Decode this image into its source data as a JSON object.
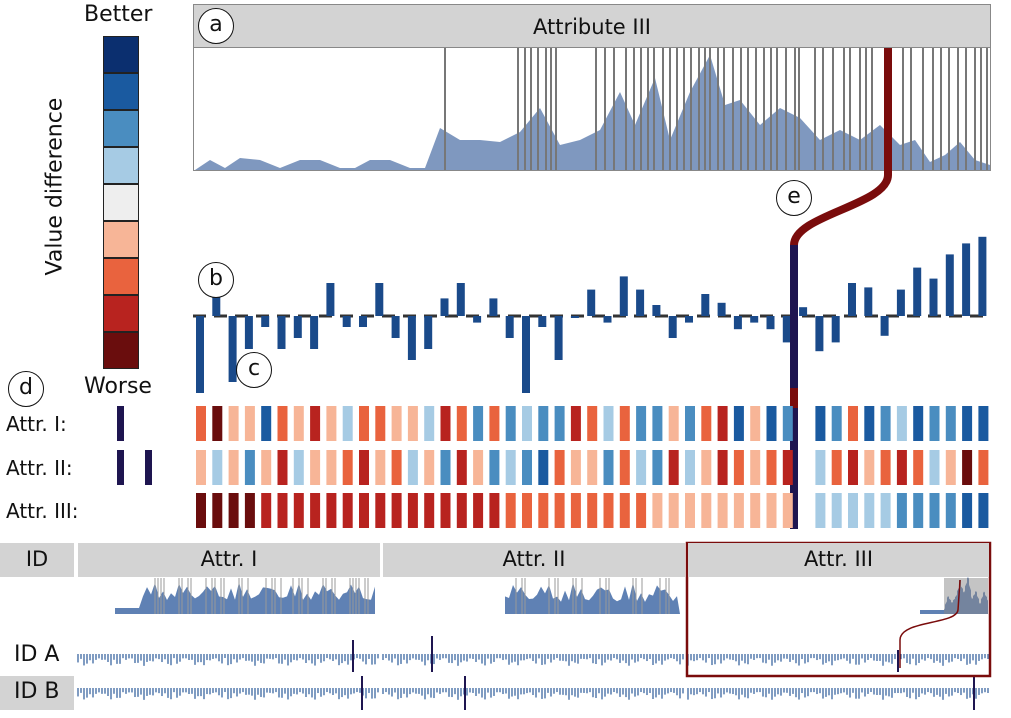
{
  "legend": {
    "top_label": "Better",
    "bottom_label": "Worse",
    "axis_label": "Value difference",
    "colors": [
      "#0b2f6f",
      "#1a5aa0",
      "#4a8dc0",
      "#a6cbe4",
      "#eeeeee",
      "#f7b597",
      "#e9633e",
      "#b8231f",
      "#6a0d0d"
    ]
  },
  "markers": {
    "a": "a",
    "b": "b",
    "c": "c",
    "d": "d",
    "e": "e"
  },
  "top_panel": {
    "title": "Attribute III"
  },
  "attr_rows": {
    "attr1": "Attr. I:",
    "attr2": "Attr. II:",
    "attr3": "Attr. III:"
  },
  "bottom_table": {
    "id_header": "ID",
    "col1": "Attr. I",
    "col2": "Attr. II",
    "col3": "Attr. III",
    "row_a": "ID A",
    "row_b": "ID B"
  },
  "colors": {
    "highlight": "#7a0c0c",
    "bar_blue": "#1a4a8a",
    "area_fill": "#7f98bf",
    "selected": "#1e1550"
  },
  "bars_b": [
    -3.5,
    1,
    -3,
    -1.5,
    -0.5,
    -1.5,
    -1,
    -1.5,
    1.5,
    -0.5,
    -0.5,
    1.5,
    -1,
    -2,
    -1.5,
    0.8,
    1.5,
    -0.3,
    0.8,
    -1,
    -3.5,
    -0.5,
    -2,
    0,
    1.2,
    -0.3,
    1.8,
    1.2,
    0.5,
    -1,
    -0.3,
    1,
    0.6,
    -0.6,
    -0.3,
    -0.6,
    -1.2,
    0.4,
    -1.6,
    -1.2,
    1.5,
    1.3,
    -0.9,
    1.2,
    2.2,
    1.7,
    2.8,
    3.3,
    3.6
  ],
  "strip_attr1": [
    "#e9633e",
    "#6a0d0d",
    "#f7b597",
    "#f7b597",
    "#1a5aa0",
    "#e9633e",
    "#f7b597",
    "#b8231f",
    "#f7b597",
    "#a6cbe4",
    "#e9633e",
    "#e9633e",
    "#f7b597",
    "#f7b597",
    "#a6cbe4",
    "#b8231f",
    "#e9633e",
    "#4a8dc0",
    "#e9633e",
    "#4a8dc0",
    "#a6cbe4",
    "#4a8dc0",
    "#4a8dc0",
    "#b8231f",
    "#e9633e",
    "#a6cbe4",
    "#e9633e",
    "#4a8dc0",
    "#4a8dc0",
    "#f7b597",
    "#4a8dc0",
    "#e9633e",
    "#b8231f",
    "#1a5aa0",
    "#f7b597",
    "#1a5aa0",
    "#4a8dc0",
    "#4a8dc0",
    "#1a5aa0",
    "#4a8dc0",
    "#e9633e",
    "#1a5aa0",
    "#4a8dc0",
    "#a6cbe4",
    "#1a5aa0",
    "#4a8dc0",
    "#4a8dc0",
    "#1a5aa0",
    "#1a5aa0"
  ],
  "strip_attr2": [
    "#f7b597",
    "#a6cbe4",
    "#f7b597",
    "#4a8dc0",
    "#f7b597",
    "#b8231f",
    "#a6cbe4",
    "#f7b597",
    "#f7b597",
    "#e9633e",
    "#b8231f",
    "#f7b597",
    "#e9633e",
    "#a6cbe4",
    "#f7b597",
    "#4a8dc0",
    "#b8231f",
    "#f7b597",
    "#4a8dc0",
    "#a6cbe4",
    "#4a8dc0",
    "#1a5aa0",
    "#e9633e",
    "#f7b597",
    "#f7b597",
    "#4a8dc0",
    "#e9633e",
    "#a6cbe4",
    "#4a8dc0",
    "#b8231f",
    "#a6cbe4",
    "#f7b597",
    "#b8231f",
    "#e9633e",
    "#f7b597",
    "#e9633e",
    "#b8231f",
    "#f7b597",
    "#a6cbe4",
    "#e9633e",
    "#b8231f",
    "#f7b597",
    "#e9633e",
    "#b8231f",
    "#e9633e",
    "#a6cbe4",
    "#f7b597",
    "#6a0d0d",
    "#e9633e"
  ],
  "strip_attr3": [
    "#6a0d0d",
    "#6a0d0d",
    "#6a0d0d",
    "#6a0d0d",
    "#b8231f",
    "#b8231f",
    "#b8231f",
    "#b8231f",
    "#b8231f",
    "#b8231f",
    "#b8231f",
    "#b8231f",
    "#b8231f",
    "#b8231f",
    "#b8231f",
    "#b8231f",
    "#b8231f",
    "#b8231f",
    "#b8231f",
    "#e9633e",
    "#e9633e",
    "#e9633e",
    "#e9633e",
    "#e9633e",
    "#e9633e",
    "#e9633e",
    "#e9633e",
    "#e9633e",
    "#f7b597",
    "#f7b597",
    "#f7b597",
    "#f7b597",
    "#f7b597",
    "#f7b597",
    "#f7b597",
    "#f7b597",
    "#f7b597",
    "#f7b597",
    "#a6cbe4",
    "#a6cbe4",
    "#a6cbe4",
    "#a6cbe4",
    "#a6cbe4",
    "#4a8dc0",
    "#4a8dc0",
    "#4a8dc0",
    "#4a8dc0",
    "#1a5aa0",
    "#1a5aa0"
  ]
}
